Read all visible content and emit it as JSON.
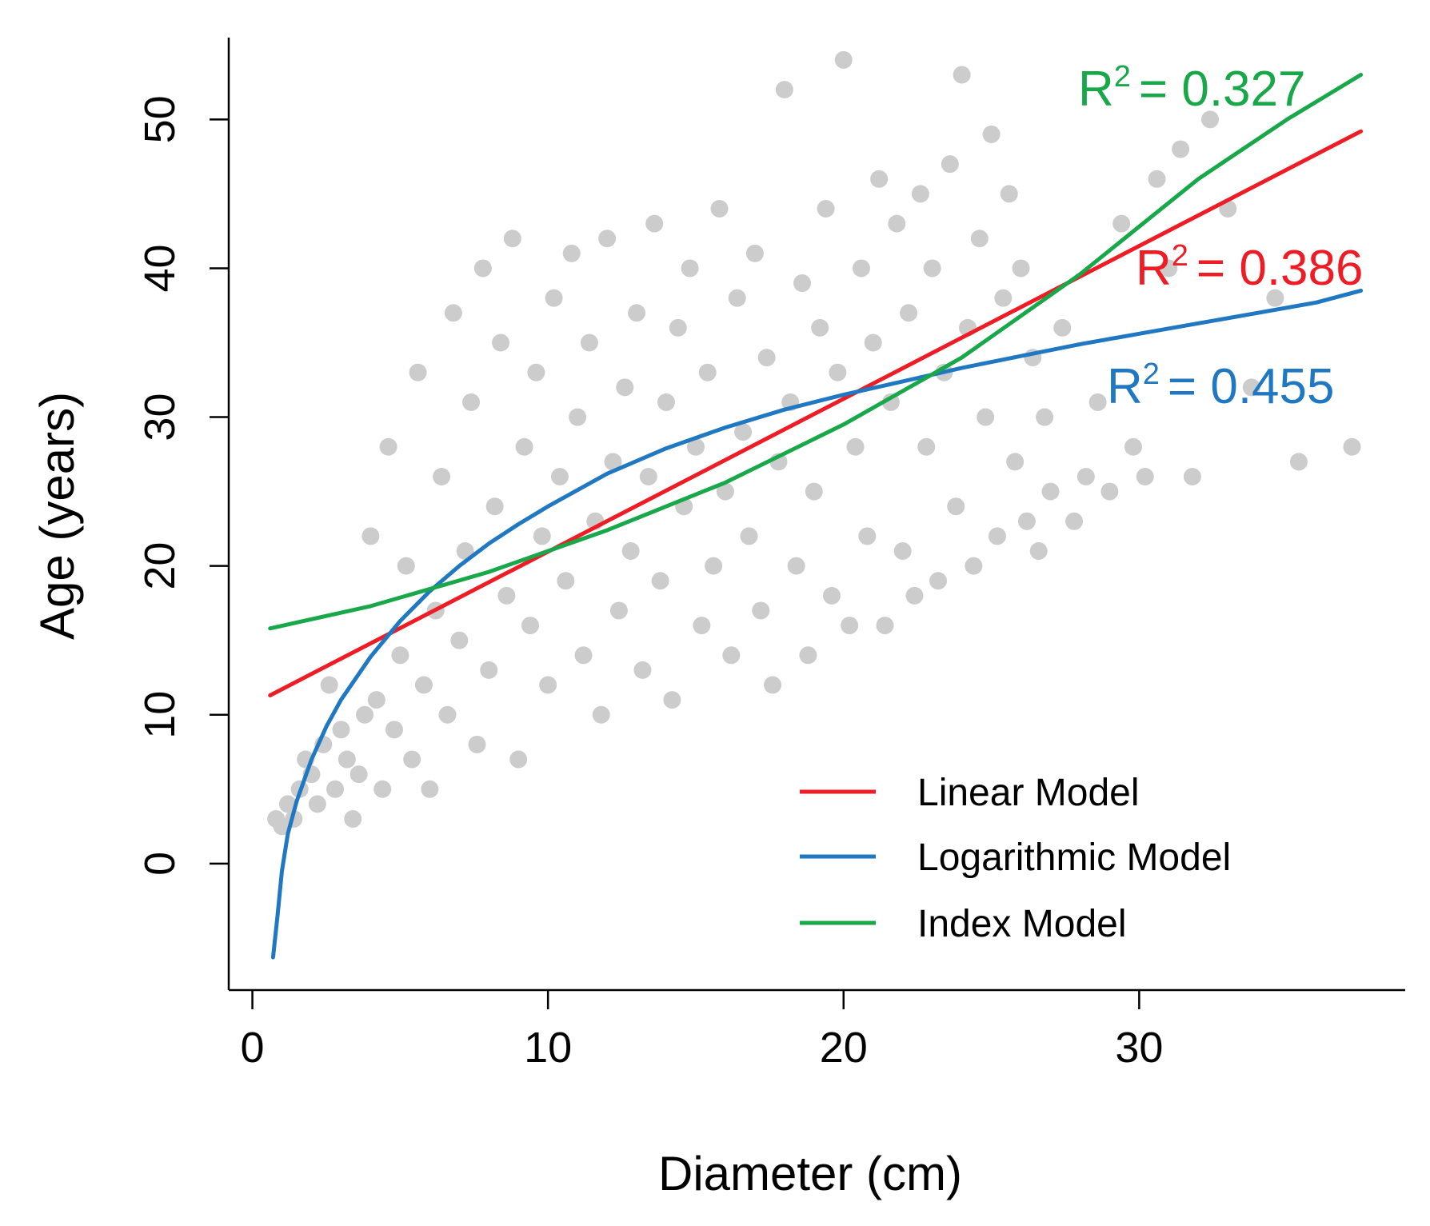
{
  "chart_data": {
    "type": "scatter",
    "title": "",
    "xlabel": "Diameter (cm)",
    "ylabel": "Age (years)",
    "xlim": [
      -0.8,
      39.0
    ],
    "ylim": [
      -8.5,
      55.5
    ],
    "xticks": [
      0,
      10,
      20,
      30
    ],
    "yticks": [
      0,
      10,
      20,
      30,
      40,
      50
    ],
    "point_color": "#cccccc",
    "points": [
      [
        0.8,
        3
      ],
      [
        1.0,
        2.5
      ],
      [
        1.2,
        4
      ],
      [
        1.4,
        3
      ],
      [
        1.6,
        5
      ],
      [
        1.8,
        7
      ],
      [
        2.0,
        6
      ],
      [
        2.2,
        4
      ],
      [
        2.4,
        8
      ],
      [
        2.6,
        12
      ],
      [
        2.8,
        5
      ],
      [
        3.0,
        9
      ],
      [
        3.2,
        7
      ],
      [
        3.4,
        3
      ],
      [
        3.6,
        6
      ],
      [
        3.8,
        10
      ],
      [
        4.0,
        22
      ],
      [
        4.2,
        11
      ],
      [
        4.4,
        5
      ],
      [
        4.6,
        28
      ],
      [
        4.8,
        9
      ],
      [
        5.0,
        14
      ],
      [
        5.2,
        20
      ],
      [
        5.4,
        7
      ],
      [
        5.6,
        33
      ],
      [
        5.8,
        12
      ],
      [
        6.0,
        5
      ],
      [
        6.2,
        17
      ],
      [
        6.4,
        26
      ],
      [
        6.6,
        10
      ],
      [
        6.8,
        37
      ],
      [
        7.0,
        15
      ],
      [
        7.2,
        21
      ],
      [
        7.4,
        31
      ],
      [
        7.6,
        8
      ],
      [
        7.8,
        40
      ],
      [
        8.0,
        13
      ],
      [
        8.2,
        24
      ],
      [
        8.4,
        35
      ],
      [
        8.6,
        18
      ],
      [
        8.8,
        42
      ],
      [
        9.0,
        7
      ],
      [
        9.2,
        28
      ],
      [
        9.4,
        16
      ],
      [
        9.6,
        33
      ],
      [
        9.8,
        22
      ],
      [
        10.0,
        12
      ],
      [
        10.2,
        38
      ],
      [
        10.4,
        26
      ],
      [
        10.6,
        19
      ],
      [
        10.8,
        41
      ],
      [
        11.0,
        30
      ],
      [
        11.2,
        14
      ],
      [
        11.4,
        35
      ],
      [
        11.6,
        23
      ],
      [
        11.8,
        10
      ],
      [
        12.0,
        42
      ],
      [
        12.2,
        27
      ],
      [
        12.4,
        17
      ],
      [
        12.6,
        32
      ],
      [
        12.8,
        21
      ],
      [
        13.0,
        37
      ],
      [
        13.2,
        13
      ],
      [
        13.4,
        26
      ],
      [
        13.6,
        43
      ],
      [
        13.8,
        19
      ],
      [
        14.0,
        31
      ],
      [
        14.2,
        11
      ],
      [
        14.4,
        36
      ],
      [
        14.6,
        24
      ],
      [
        14.8,
        40
      ],
      [
        15.0,
        28
      ],
      [
        15.2,
        16
      ],
      [
        15.4,
        33
      ],
      [
        15.6,
        20
      ],
      [
        15.8,
        44
      ],
      [
        16.0,
        25
      ],
      [
        16.2,
        14
      ],
      [
        16.4,
        38
      ],
      [
        16.6,
        29
      ],
      [
        16.8,
        22
      ],
      [
        17.0,
        41
      ],
      [
        17.2,
        17
      ],
      [
        17.4,
        34
      ],
      [
        17.6,
        12
      ],
      [
        17.8,
        27
      ],
      [
        18.0,
        52
      ],
      [
        18.2,
        31
      ],
      [
        18.4,
        20
      ],
      [
        18.6,
        39
      ],
      [
        18.8,
        14
      ],
      [
        19.0,
        25
      ],
      [
        19.2,
        36
      ],
      [
        19.4,
        44
      ],
      [
        19.6,
        18
      ],
      [
        19.8,
        33
      ],
      [
        20.0,
        54
      ],
      [
        20.2,
        16
      ],
      [
        20.4,
        28
      ],
      [
        20.6,
        40
      ],
      [
        20.8,
        22
      ],
      [
        21.0,
        35
      ],
      [
        21.2,
        46
      ],
      [
        21.4,
        16
      ],
      [
        21.6,
        31
      ],
      [
        21.8,
        43
      ],
      [
        22.0,
        21
      ],
      [
        22.2,
        37
      ],
      [
        22.4,
        18
      ],
      [
        22.6,
        45
      ],
      [
        22.8,
        28
      ],
      [
        23.0,
        40
      ],
      [
        23.2,
        19
      ],
      [
        23.4,
        33
      ],
      [
        23.6,
        47
      ],
      [
        23.8,
        24
      ],
      [
        24.0,
        53
      ],
      [
        24.2,
        36
      ],
      [
        24.4,
        20
      ],
      [
        24.6,
        42
      ],
      [
        24.8,
        30
      ],
      [
        25.0,
        49
      ],
      [
        25.2,
        22
      ],
      [
        25.4,
        38
      ],
      [
        25.6,
        45
      ],
      [
        25.8,
        27
      ],
      [
        26.0,
        40
      ],
      [
        26.2,
        23
      ],
      [
        26.4,
        34
      ],
      [
        26.6,
        21
      ],
      [
        26.8,
        30
      ],
      [
        27.0,
        25
      ],
      [
        27.4,
        36
      ],
      [
        27.8,
        23
      ],
      [
        28.2,
        26
      ],
      [
        28.6,
        31
      ],
      [
        29.0,
        25
      ],
      [
        29.4,
        43
      ],
      [
        29.8,
        28
      ],
      [
        30.2,
        26
      ],
      [
        30.6,
        46
      ],
      [
        31.0,
        40
      ],
      [
        31.4,
        48
      ],
      [
        31.8,
        26
      ],
      [
        32.4,
        50
      ],
      [
        33.0,
        44
      ],
      [
        33.8,
        32
      ],
      [
        34.6,
        38
      ],
      [
        35.4,
        27
      ],
      [
        37.2,
        28
      ]
    ],
    "series": [
      {
        "name": "Linear Model",
        "color": "#ee1c25",
        "x": [
          0.6,
          37.5
        ],
        "y": [
          11.3,
          49.2
        ]
      },
      {
        "name": "Logarithmic Model",
        "color": "#1f78c1",
        "x": [
          0.7,
          0.85,
          1.0,
          1.2,
          1.5,
          2.0,
          2.5,
          3.0,
          4.0,
          5.0,
          6.0,
          7.0,
          8.0,
          9.0,
          10.0,
          12.0,
          14.0,
          16.0,
          18.0,
          20.0,
          22.0,
          24.0,
          26.0,
          28.0,
          30.0,
          32.0,
          34.0,
          36.0,
          37.5
        ],
        "y": [
          -6.3,
          -3.5,
          -0.5,
          2.0,
          4.2,
          7.0,
          9.2,
          11.0,
          13.9,
          16.3,
          18.3,
          20.0,
          21.5,
          22.8,
          24.0,
          26.2,
          27.9,
          29.3,
          30.5,
          31.5,
          32.4,
          33.3,
          34.1,
          34.9,
          35.6,
          36.3,
          37.0,
          37.7,
          38.5
        ]
      },
      {
        "name": "Index Model",
        "color": "#18a84a",
        "x": [
          0.6,
          4,
          8,
          12,
          16,
          20,
          24,
          28,
          32,
          35,
          37.5
        ],
        "y": [
          15.8,
          17.3,
          19.6,
          22.4,
          25.6,
          29.5,
          34.0,
          39.6,
          46.0,
          50.0,
          53.0
        ]
      }
    ],
    "annotations": [
      {
        "text": "R",
        "sup": "2",
        "value": "= 0.327",
        "color": "#18a84a"
      },
      {
        "text": "R",
        "sup": "2",
        "value": "= 0.386",
        "color": "#ee1c25"
      },
      {
        "text": "R",
        "sup": "2",
        "value": "= 0.455",
        "color": "#1f78c1"
      }
    ],
    "legend": {
      "placement": "bottom-right",
      "entries": [
        {
          "label": "Linear Model",
          "color": "#ee1c25"
        },
        {
          "label": "Logarithmic Model",
          "color": "#1f78c1"
        },
        {
          "label": "Index Model",
          "color": "#18a84a"
        }
      ]
    }
  }
}
